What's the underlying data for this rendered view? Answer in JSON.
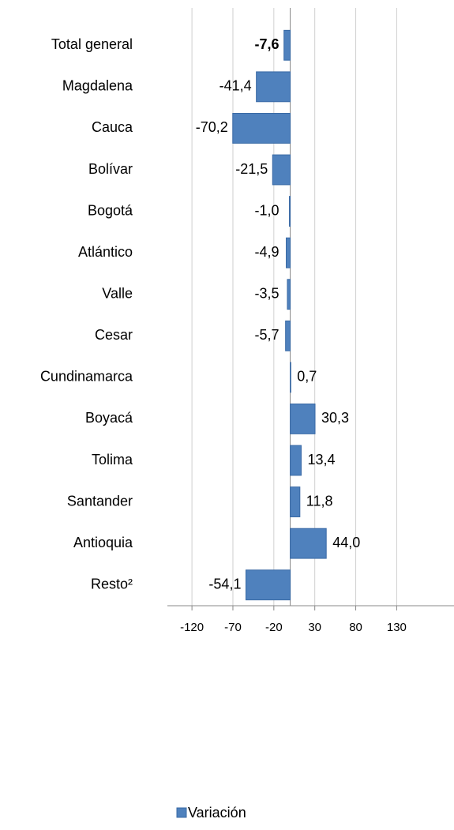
{
  "chart_data": {
    "type": "bar",
    "orientation": "horizontal",
    "categories": [
      "Total general",
      "Magdalena",
      "Cauca",
      "Bolívar",
      "Bogotá",
      "Atlántico",
      "Valle",
      "Cesar",
      "Cundinamarca",
      "Boyacá",
      "Tolima",
      "Santander",
      "Antioquia",
      "Resto²"
    ],
    "series": [
      {
        "name": "Variación",
        "color": "#4f81bd",
        "values": [
          -7.6,
          -41.4,
          -70.2,
          -21.5,
          -1.0,
          -4.9,
          -3.5,
          -5.7,
          0.7,
          30.3,
          13.4,
          11.8,
          44.0,
          -54.1
        ],
        "value_labels": [
          "-7,6",
          "-41,4",
          "-70,2",
          "-21,5",
          "-1,0",
          "-4,9",
          "-3,5",
          "-5,7",
          "0,7",
          "30,3",
          "13,4",
          "11,8",
          "44,0",
          "-54,1"
        ]
      }
    ],
    "xlim": [
      -150,
      200
    ],
    "xticks": [
      -120,
      -70,
      -20,
      30,
      80,
      130
    ],
    "grid": true,
    "legend": "bottom"
  }
}
